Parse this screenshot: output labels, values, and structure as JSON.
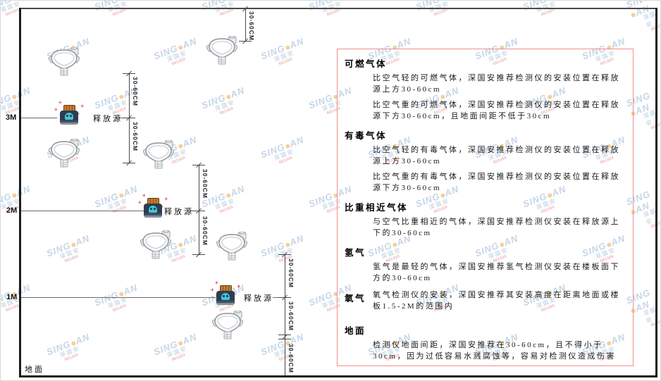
{
  "watermark": {
    "brand": "SING",
    "brand2": "AN",
    "sub": "深国安",
    "code": "661434"
  },
  "diagram": {
    "height_labels": [
      "3M",
      "2M",
      "1M"
    ],
    "ground_label": "地面",
    "source_label": "释放源",
    "dim_label": "30-60CM"
  },
  "panel": {
    "sections": [
      {
        "heading": "可燃气体",
        "paragraphs": [
          "比空气轻的可燃气体，深国安推荐检测仪的安装位置在释放源上方30-60cm",
          "比空气重的可燃气体，深国安推荐检测仪的安装位置在释放源下方30-60cm，且地面间距不低于30cm"
        ]
      },
      {
        "heading": "有毒气体",
        "paragraphs": [
          "比空气轻的有毒气体，深国安推荐检测仪的安装位置在释放源上方30-60cm",
          "比空气重的有毒气体，深国安推荐检测仪的安装位置在释放源下方30-60cm"
        ]
      },
      {
        "heading": "比重相近气体",
        "paragraphs": [
          "与空气比重相近的气体，深国安推荐检测仪安装在释放源上下的30-60cm"
        ]
      },
      {
        "heading": "氢气",
        "paragraphs": [
          "氢气是最轻的气体，深国安推荐氢气检测仪安装在楼板面下方的30-60cm"
        ]
      },
      {
        "heading": "氧气",
        "paragraphs": [
          "氧气检测仪的安装，深国安推荐其安装高度在距离地面或楼板1.5-2M的范围内"
        ]
      },
      {
        "heading": "地面",
        "paragraphs": [
          "检测仪地面间距，深国安推荐在30-60cm，且不得小于30cm，因为过低容易水溅腐蚀等，容易对检测仪造成伤害"
        ]
      }
    ]
  },
  "colors": {
    "panel_border": "#f08f8f",
    "source_body": "#2c3e52",
    "source_lid": "#c07a2e",
    "skull": "#46c4d4",
    "watermark_blue": "#8cadcf",
    "watermark_red": "#e36e6e"
  }
}
